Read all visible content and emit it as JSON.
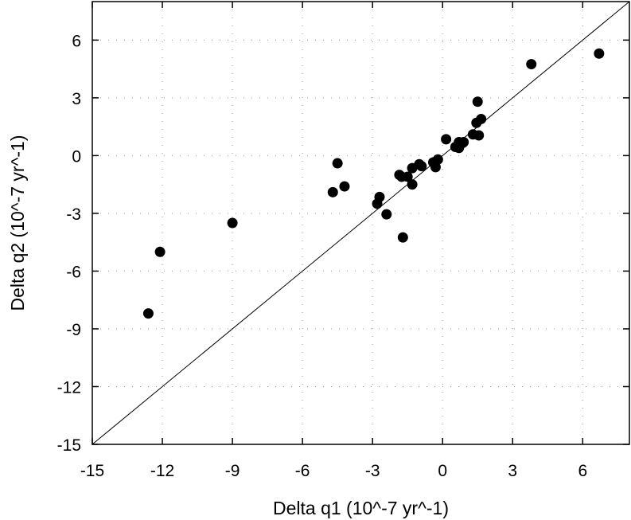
{
  "chart_data": {
    "type": "scatter",
    "xlabel": "Delta q1 (10^-7 yr^-1)",
    "ylabel": "Delta q2 (10^-7 yr^-1)",
    "xlim": [
      -15,
      8
    ],
    "ylim": [
      -15,
      8
    ],
    "xticks": [
      -15,
      -12,
      -9,
      -6,
      -3,
      0,
      3,
      6
    ],
    "yticks": [
      -15,
      -12,
      -9,
      -6,
      -3,
      0,
      3,
      6
    ],
    "xtick_labels": [
      "-15",
      "-12",
      "-9",
      "-6",
      "-3",
      "0",
      "3",
      "6"
    ],
    "ytick_labels": [
      "-15",
      "-12",
      "-9",
      "-6",
      "-3",
      "0",
      "3",
      "6"
    ],
    "grid": "dotted",
    "reference_line": "y = x",
    "marker_color": "#000000",
    "series": [
      {
        "points": [
          [
            -12.6,
            -8.2
          ],
          [
            -12.1,
            -5.0
          ],
          [
            -9.0,
            -3.5
          ],
          [
            -4.7,
            -1.9
          ],
          [
            -4.5,
            -0.4
          ],
          [
            -4.2,
            -1.6
          ],
          [
            -2.8,
            -2.5
          ],
          [
            -2.7,
            -2.15
          ],
          [
            -2.4,
            -3.05
          ],
          [
            -1.7,
            -4.25
          ],
          [
            -1.85,
            -1.0
          ],
          [
            -1.75,
            -1.1
          ],
          [
            -1.5,
            -1.1
          ],
          [
            -1.3,
            -1.5
          ],
          [
            -1.3,
            -0.65
          ],
          [
            -1.0,
            -0.45
          ],
          [
            -0.9,
            -0.55
          ],
          [
            -0.4,
            -0.35
          ],
          [
            -0.3,
            -0.6
          ],
          [
            -0.2,
            -0.2
          ],
          [
            0.15,
            0.85
          ],
          [
            0.55,
            0.45
          ],
          [
            0.7,
            0.4
          ],
          [
            0.7,
            0.7
          ],
          [
            0.85,
            0.65
          ],
          [
            0.9,
            0.7
          ],
          [
            1.3,
            1.1
          ],
          [
            1.45,
            1.7
          ],
          [
            1.5,
            2.8
          ],
          [
            1.55,
            1.05
          ],
          [
            1.65,
            1.9
          ],
          [
            3.8,
            4.75
          ],
          [
            6.7,
            5.3
          ]
        ]
      }
    ]
  }
}
